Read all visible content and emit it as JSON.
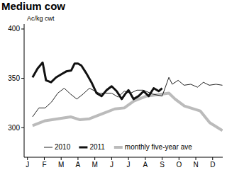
{
  "chart_data": {
    "type": "line",
    "title": "Medium cow",
    "y_label": "Ac/kg cwt",
    "xlim": [
      -0.2,
      11.6
    ],
    "xticks": [
      {
        "value": 0,
        "label": "J"
      },
      {
        "value": 1,
        "label": "F"
      },
      {
        "value": 2,
        "label": "M"
      },
      {
        "value": 3,
        "label": "A"
      },
      {
        "value": 4,
        "label": "M"
      },
      {
        "value": 5,
        "label": "J"
      },
      {
        "value": 6,
        "label": "J"
      },
      {
        "value": 7,
        "label": "A"
      },
      {
        "value": 8,
        "label": "S"
      },
      {
        "value": 9,
        "label": "O"
      },
      {
        "value": 10,
        "label": "N"
      },
      {
        "value": 11,
        "label": "D"
      }
    ],
    "ylim": [
      270,
      405
    ],
    "yticks": [
      300,
      350,
      400
    ],
    "grid": false,
    "legend": "bottom",
    "series": [
      {
        "name": "2010",
        "color": "#222222",
        "line_style": "thin",
        "x": [
          0.3,
          0.68,
          1.05,
          1.43,
          1.8,
          2.18,
          2.56,
          2.93,
          3.3,
          3.68,
          4.25,
          4.62,
          5.0,
          5.38,
          5.75,
          6.13,
          6.5,
          6.88,
          7.44,
          8.0,
          8.4,
          8.6,
          8.95,
          9.3,
          9.7,
          10.1,
          10.45,
          10.8,
          11.2,
          11.58
        ],
        "values": [
          311,
          320,
          320,
          326,
          335,
          340,
          334,
          329,
          334,
          340,
          335,
          335,
          335,
          331,
          337,
          335,
          338,
          338,
          334,
          332,
          351,
          344,
          348,
          343,
          344,
          341,
          346,
          343,
          344,
          343
        ]
      },
      {
        "name": "2011",
        "color": "#111111",
        "line_style": "thick",
        "x": [
          0.3,
          0.6,
          0.9,
          1.1,
          1.4,
          1.7,
          2.0,
          2.3,
          2.6,
          2.8,
          3.0,
          3.2,
          3.5,
          3.8,
          4.1,
          4.4,
          4.7,
          5.0,
          5.3,
          5.6,
          5.8,
          6.0,
          6.3,
          6.6,
          6.9,
          7.2,
          7.5,
          7.8,
          8.0
        ],
        "values": [
          351,
          360,
          366,
          348,
          346,
          351,
          354,
          357,
          358,
          365,
          365,
          363,
          355,
          346,
          335,
          332,
          338,
          342,
          337,
          329,
          334,
          338,
          329,
          332,
          337,
          332,
          340,
          337,
          340
        ]
      },
      {
        "name": "monthly five-year ave",
        "color": "#bbbbbb",
        "line_style": "wide",
        "x": [
          0.3,
          1.05,
          1.8,
          2.56,
          3.12,
          3.68,
          4.44,
          5.19,
          5.75,
          6.32,
          7.07,
          8.4,
          8.77,
          9.32,
          10.26,
          10.83,
          11.58
        ],
        "values": [
          302,
          307,
          309,
          311,
          308,
          309,
          314,
          319,
          320,
          327,
          332,
          335,
          329,
          322,
          317,
          305,
          297
        ]
      }
    ]
  }
}
